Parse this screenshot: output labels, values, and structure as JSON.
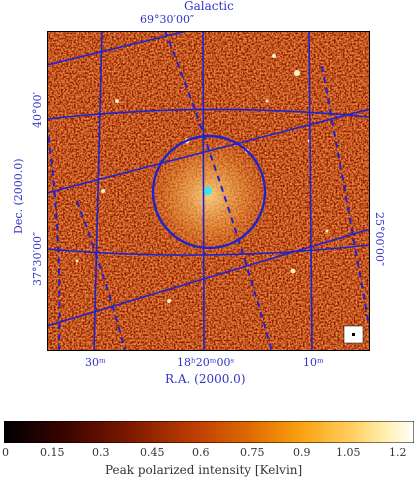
{
  "galactic_title": "Galactic",
  "galactic_top_label": "69°30′00″",
  "galactic_left_label": "40°00′",
  "galactic_left_label2": "37°30′00″",
  "galactic_right_label": "25°00′00″",
  "dec_axis_label": "Dec. (2000.0)",
  "ra_axis_label": "R.A. (2000.0)",
  "ra_ticks": [
    "30ᵐ",
    "18ʰ20ᵐ00ˢ",
    "10ᵐ"
  ],
  "colorbar": {
    "title": "Peak polarized intensity [Kelvin]",
    "ticks": [
      "0",
      "0.15",
      "0.3",
      "0.45",
      "0.6",
      "0.75",
      "0.9",
      "1.05",
      "1.2"
    ],
    "colors": [
      "#000000",
      "#5a0a00",
      "#a02800",
      "#d05a00",
      "#f08a00",
      "#ffbf3c",
      "#ffeda0",
      "#ffffff"
    ]
  },
  "colors": {
    "overlay": "#2222cc",
    "map_base": "#8a2a00",
    "marker": "#33e6ff"
  }
}
